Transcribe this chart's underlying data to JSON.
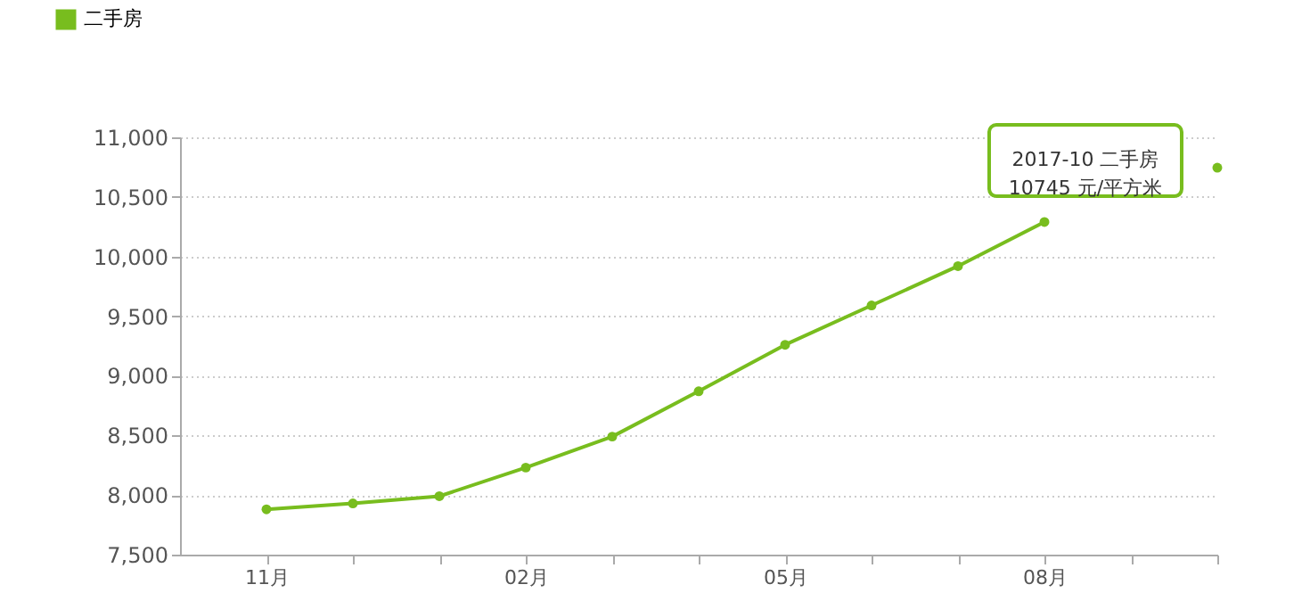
{
  "chart_data": {
    "type": "line",
    "categories": [
      "11月",
      null,
      null,
      "02月",
      null,
      null,
      "05月",
      null,
      null,
      "08月",
      null,
      null
    ],
    "series": [
      {
        "name": "二手房",
        "color": "#78bd1e",
        "values": [
          7880,
          7930,
          7990,
          8230,
          8490,
          8870,
          9260,
          9590,
          9920,
          10290,
          null,
          10745
        ]
      }
    ],
    "ylim": [
      7500,
      11000
    ],
    "yticks": [
      {
        "value": 7500,
        "label": "7,500"
      },
      {
        "value": 8000,
        "label": "8,000"
      },
      {
        "value": 8500,
        "label": "8,500"
      },
      {
        "value": 9000,
        "label": "9,000"
      },
      {
        "value": 9500,
        "label": "9,500"
      },
      {
        "value": 10000,
        "label": "10,000"
      },
      {
        "value": 10500,
        "label": "10,500"
      },
      {
        "value": 11000,
        "label": "11,000"
      }
    ],
    "annotations": [
      "2017-10 二手房\n10745 元/平方米"
    ],
    "grid": "y",
    "legend": "top left",
    "marker": "circle",
    "line_style": "solid"
  }
}
